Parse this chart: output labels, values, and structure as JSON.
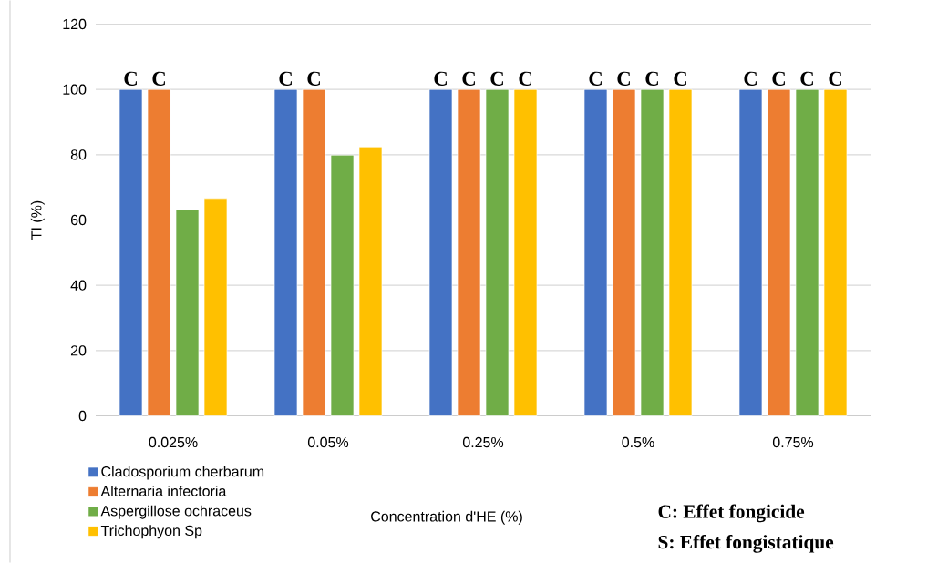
{
  "chart_data": {
    "type": "bar",
    "xlabel": "Concentration d'HE (%)",
    "ylabel": "TI (%)",
    "categories": [
      "0.025%",
      "0.05%",
      "0.25%",
      "0.5%",
      "0.75%"
    ],
    "series": [
      {
        "name": "Cladosporium cherbarum",
        "color": "#4472c4",
        "values": [
          100,
          100,
          100,
          100,
          100
        ],
        "value_labels": [
          "C",
          "C",
          "C",
          "C",
          "C"
        ]
      },
      {
        "name": "Alternaria infectoria",
        "color": "#ed7d31",
        "values": [
          100,
          100,
          100,
          100,
          100
        ],
        "value_labels": [
          "C",
          "C",
          "C",
          "C",
          "C"
        ]
      },
      {
        "name": "Aspergillose ochraceus",
        "color": "#70ad47",
        "values": [
          63.1,
          79.9,
          100,
          100,
          100
        ],
        "value_labels": [
          null,
          null,
          "C",
          "C",
          "C"
        ]
      },
      {
        "name": "Trichophyon Sp",
        "color": "#ffc000",
        "values": [
          66.6,
          82.4,
          100,
          100,
          100
        ],
        "value_labels": [
          null,
          null,
          "C",
          "C",
          "C"
        ]
      }
    ],
    "ylim": [
      0,
      120
    ],
    "yticks": [
      0,
      20,
      40,
      60,
      80,
      100,
      120
    ],
    "grid": "y",
    "legend": "bottom left",
    "annotations": [
      "C: Effet fongicide",
      "S: Effet fongistatique"
    ]
  }
}
